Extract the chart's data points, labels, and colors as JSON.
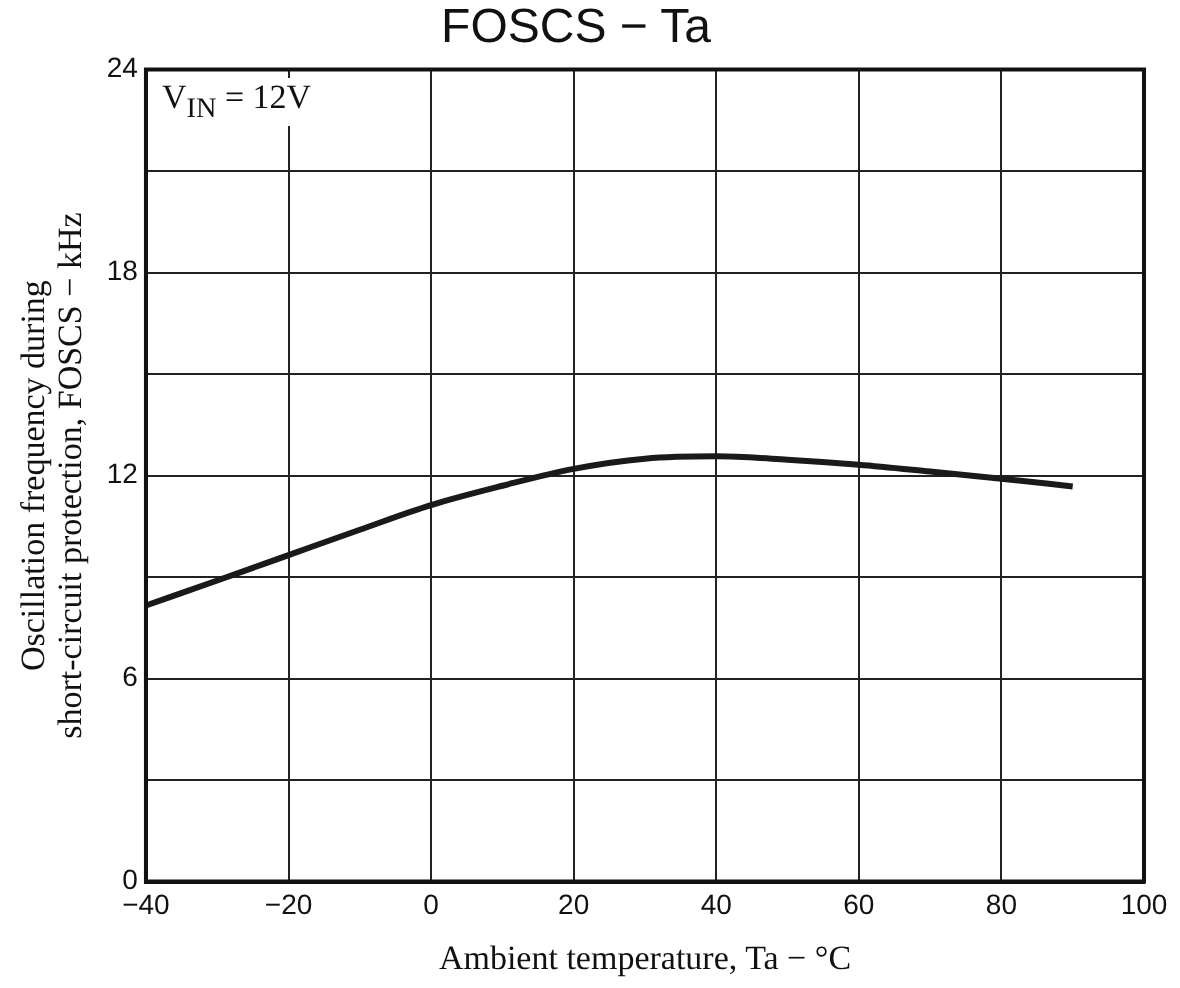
{
  "chart_data": {
    "type": "line",
    "title": "FOSCS − Ta",
    "xlabel": "Ambient temperature, Ta − °C",
    "ylabel": "Oscillation frequency during\nshort-circuit protection, FOSCS − kHz",
    "annotations": [
      "V$_{IN}$ = 12V"
    ],
    "x": [
      -40,
      -30,
      -20,
      -10,
      0,
      10,
      20,
      30,
      40,
      50,
      60,
      70,
      80,
      90
    ],
    "series": [
      {
        "color": "#1a1a1a",
        "values": [
          8.16,
          8.9,
          9.65,
          10.4,
          11.13,
          11.7,
          12.2,
          12.5,
          12.57,
          12.47,
          12.32,
          12.12,
          11.91,
          11.68
        ]
      }
    ],
    "xlim": [
      -40,
      100
    ],
    "xticks": [
      -40,
      -20,
      0,
      20,
      40,
      60,
      80,
      100
    ],
    "ylim": [
      0,
      24
    ],
    "yticks": [
      0,
      {
        "value": 3,
        "label": null
      },
      6,
      {
        "value": 9,
        "label": null
      },
      12,
      {
        "value": 15,
        "label": null
      },
      18,
      {
        "value": 21,
        "label": null
      },
      24
    ],
    "grid": true,
    "legend": false,
    "marker": "none",
    "line_style": "solid"
  }
}
